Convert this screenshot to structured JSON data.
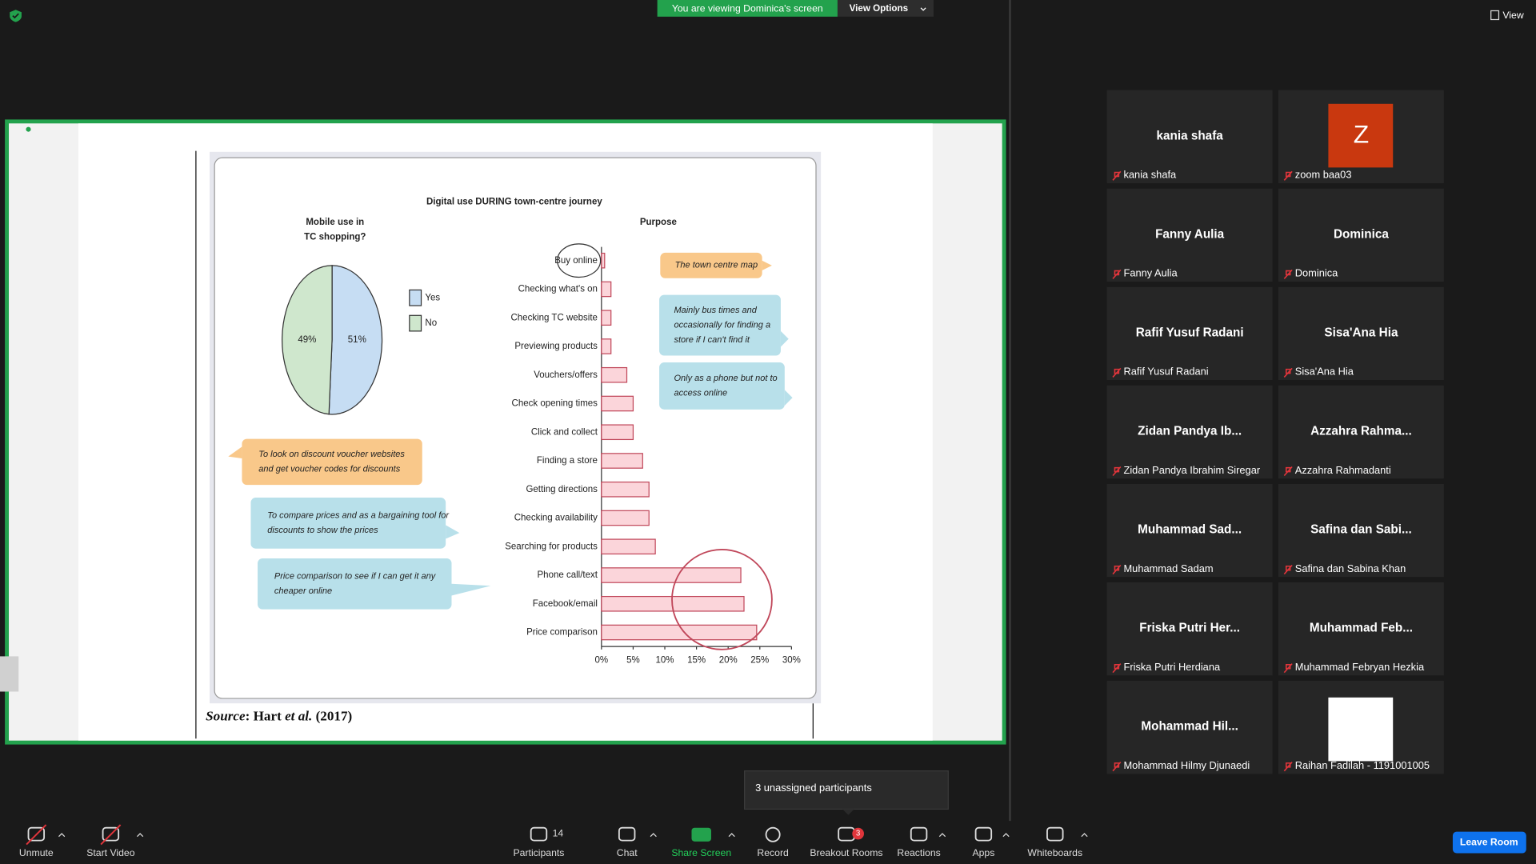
{
  "banner": {
    "status": "You are viewing Dominica's screen",
    "view_options": "View Options"
  },
  "view_button": "View",
  "shared_slide": {
    "chart_title": "Digital use DURING town-centre journey",
    "pie": {
      "title": [
        "Mobile use in",
        "TC shopping?"
      ],
      "slices": [
        {
          "name": "Yes",
          "value": 51,
          "label": "51%",
          "color": "#c6ddf3"
        },
        {
          "name": "No",
          "value": 49,
          "label": "49%",
          "color": "#cfe7cd"
        }
      ]
    },
    "bars": {
      "title": "Purpose",
      "categories": [
        "Buy online",
        "Checking what's on",
        "Checking TC website",
        "Previewing products",
        "Vouchers/offers",
        "Check opening times",
        "Click and collect",
        "Finding a store",
        "Getting directions",
        "Checking availability",
        "Searching for products",
        "Phone call/text",
        "Facebook/email",
        "Price comparison"
      ],
      "values": [
        0.5,
        1.5,
        1.5,
        1.5,
        4,
        5,
        5,
        6.5,
        7.5,
        7.5,
        8.5,
        22,
        22.5,
        24.5
      ],
      "xlim": [
        0,
        30
      ],
      "xticks": [
        {
          "value": 0,
          "label": "0%"
        },
        {
          "value": 5,
          "label": "5%"
        },
        {
          "value": 10,
          "label": "10%"
        },
        {
          "value": 15,
          "label": "15%"
        },
        {
          "value": 20,
          "label": "20%"
        },
        {
          "value": 25,
          "label": "25%"
        },
        {
          "value": 30,
          "label": "30%"
        }
      ],
      "color": "#fbd5da"
    },
    "callouts": [
      {
        "lines": [
          "The town centre map"
        ]
      },
      {
        "lines": [
          "Mainly bus times and",
          "occasionally for finding a",
          "store if I can't find it"
        ]
      },
      {
        "lines": [
          "Only as a phone but not to",
          "access online"
        ]
      },
      {
        "lines": [
          "To look on discount voucher websites",
          "and get voucher codes for discounts"
        ]
      },
      {
        "lines": [
          "To compare prices and as a bargaining tool for",
          "discounts to show the prices"
        ]
      },
      {
        "lines": [
          "Price comparison to see if I can get it any",
          "cheaper online"
        ]
      }
    ],
    "source": [
      "Source",
      ": Hart ",
      "et al.",
      " (2017)"
    ]
  },
  "participants": [
    {
      "tile_name": "kania shafa",
      "name": "kania shafa"
    },
    {
      "avatar": "Z",
      "name": "zoom baa03"
    },
    {
      "tile_name": "Fanny Aulia",
      "name": "Fanny Aulia"
    },
    {
      "tile_name": "Dominica",
      "name": "Dominica"
    },
    {
      "tile_name": "Rafif Yusuf Radani",
      "name": "Rafif Yusuf Radani"
    },
    {
      "tile_name": "Sisa'Ana Hia",
      "name": "Sisa'Ana Hia"
    },
    {
      "tile_name": "Zidan Pandya Ib...",
      "name": "Zidan Pandya Ibrahim Siregar"
    },
    {
      "tile_name": "Azzahra Rahma...",
      "name": "Azzahra Rahmadanti"
    },
    {
      "tile_name": "Muhammad Sad...",
      "name": "Muhammad Sadam"
    },
    {
      "tile_name": "Safina dan Sabi...",
      "name": "Safina dan Sabina Khan"
    },
    {
      "tile_name": "Friska Putri Her...",
      "name": "Friska Putri Herdiana"
    },
    {
      "tile_name": "Muhammad Feb...",
      "name": "Muhammad Febryan Hezkia"
    },
    {
      "tile_name": "Mohammad Hil...",
      "name": "Mohammad Hilmy Djunaedi"
    },
    {
      "name": "Raihan Fadilah - 1191001005"
    }
  ],
  "tooltip": "3 unassigned participants",
  "toolbar": {
    "unmute": "Unmute",
    "start_video": "Start Video",
    "participants": "Participants",
    "participants_count": 14,
    "chat": "Chat",
    "share_screen": "Share Screen",
    "record": "Record",
    "breakout_rooms": "Breakout Rooms",
    "breakout_badge": 3,
    "reactions": "Reactions",
    "apps": "Apps",
    "whiteboards": "Whiteboards",
    "leave_room": "Leave Room"
  }
}
